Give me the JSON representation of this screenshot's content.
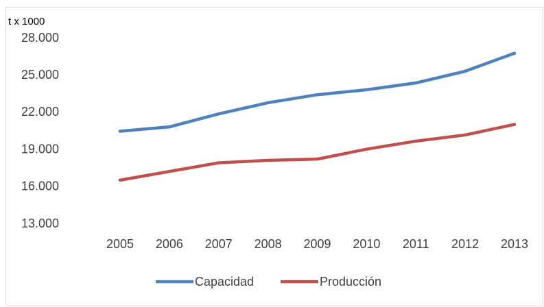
{
  "chart_data": {
    "type": "line",
    "y_unit_label": "t x 1000",
    "categories": [
      "2005",
      "2006",
      "2007",
      "2008",
      "2009",
      "2010",
      "2011",
      "2012",
      "2013"
    ],
    "series": [
      {
        "name": "Capacidad",
        "color": "#4f81bd",
        "values": [
          20500,
          20850,
          21900,
          22800,
          23450,
          23850,
          24400,
          25350,
          26800
        ]
      },
      {
        "name": "Producción",
        "color": "#c0504d",
        "values": [
          16550,
          17250,
          17950,
          18150,
          18250,
          19050,
          19700,
          20200,
          21050
        ]
      }
    ],
    "ylim": [
      13000,
      28000
    ],
    "yticks": [
      {
        "value": 13000,
        "label": "13.000"
      },
      {
        "value": 16000,
        "label": "16.000"
      },
      {
        "value": 19000,
        "label": "19.000"
      },
      {
        "value": 22000,
        "label": "22.000"
      },
      {
        "value": 25000,
        "label": "25.000"
      },
      {
        "value": 28000,
        "label": "28.000"
      }
    ],
    "grid": false,
    "legend": "bottom"
  }
}
